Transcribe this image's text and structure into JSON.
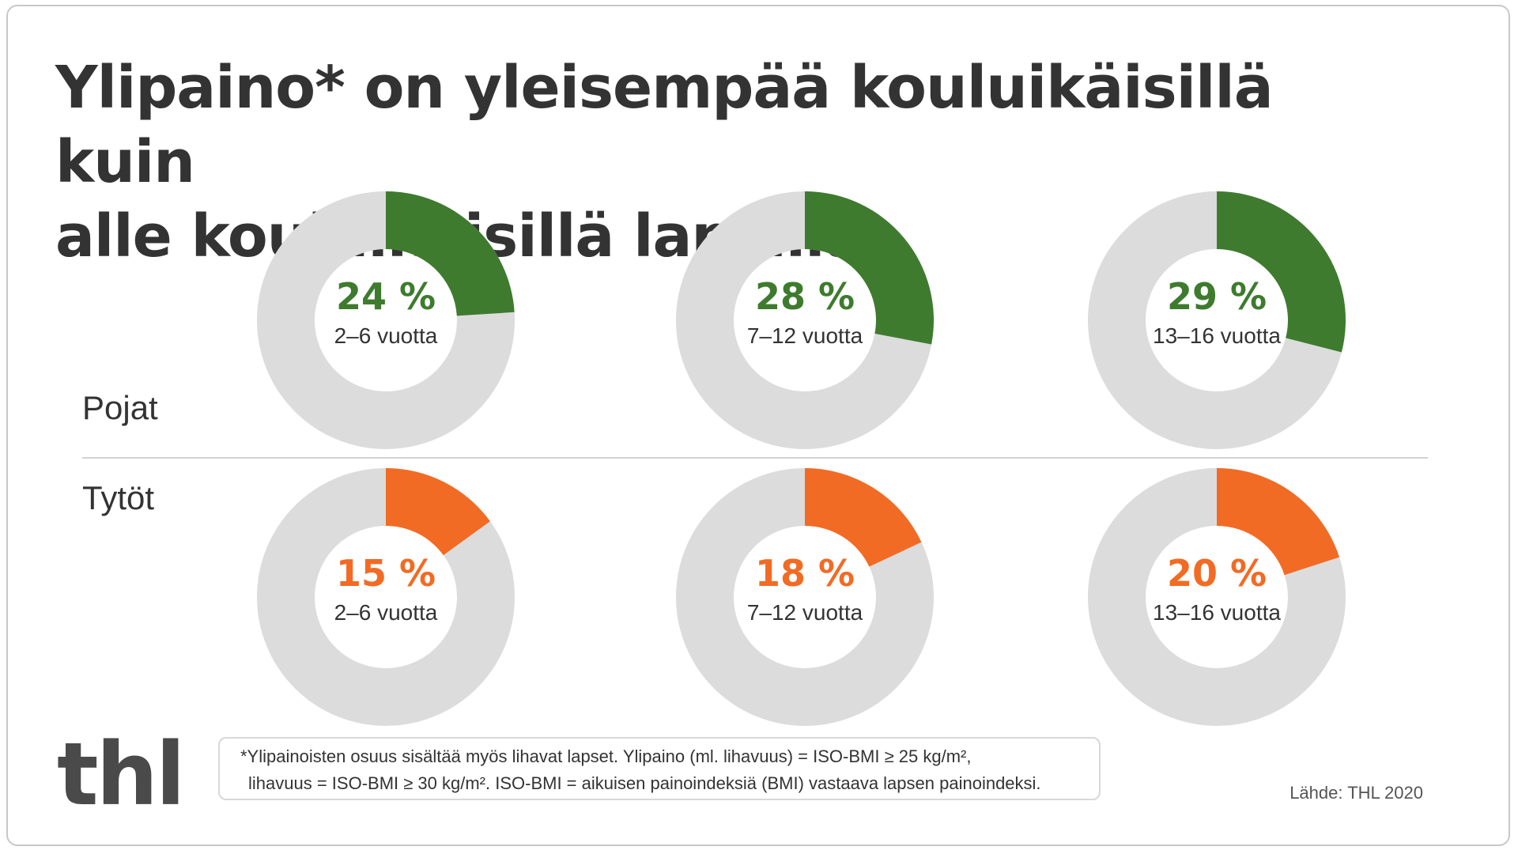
{
  "title_line1": "Ylipaino* on yleisempää kouluikäisillä kuin",
  "title_line2": "alle kouluikäisillä lapsilla",
  "colors": {
    "boys": "#3e7b2e",
    "girls": "#f26b24",
    "track": "#dcdcdc"
  },
  "chart_data": [
    {
      "type": "pie",
      "group": "Pojat",
      "color": "#3e7b2e",
      "donuts": [
        {
          "value": 24,
          "value_label": "24 %",
          "age_label": "2–6 vuotta"
        },
        {
          "value": 28,
          "value_label": "28 %",
          "age_label": "7–12 vuotta"
        },
        {
          "value": 29,
          "value_label": "29 %",
          "age_label": "13–16 vuotta"
        }
      ]
    },
    {
      "type": "pie",
      "group": "Tytöt",
      "color": "#f26b24",
      "donuts": [
        {
          "value": 15,
          "value_label": "15 %",
          "age_label": "2–6 vuotta"
        },
        {
          "value": 18,
          "value_label": "18 %",
          "age_label": "7–12 vuotta"
        },
        {
          "value": 20,
          "value_label": "20 %",
          "age_label": "13–16 vuotta"
        }
      ]
    }
  ],
  "logo_text": "thl",
  "footnote_line1": "*Ylipainoisten osuus sisältää myös lihavat lapset. Ylipaino (ml. lihavuus) = ISO-BMI ≥ 25 kg/m²,",
  "footnote_line2": "lihavuus = ISO-BMI ≥ 30 kg/m². ISO-BMI = aikuisen painoindeksiä (BMI) vastaava lapsen painoindeksi.",
  "source": "Lähde: THL 2020"
}
